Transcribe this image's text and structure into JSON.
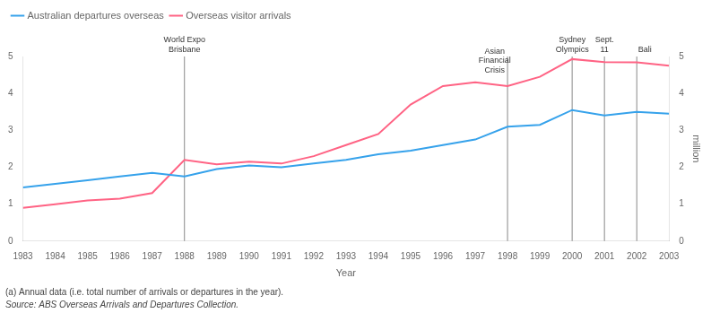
{
  "chart_data": {
    "type": "line",
    "x": [
      1983,
      1984,
      1985,
      1986,
      1987,
      1988,
      1989,
      1990,
      1991,
      1992,
      1993,
      1994,
      1995,
      1996,
      1997,
      1998,
      1999,
      2000,
      2001,
      2002,
      2003
    ],
    "series": [
      {
        "name": "Australian departures overseas",
        "values": [
          1.45,
          1.55,
          1.65,
          1.75,
          1.85,
          1.75,
          1.95,
          2.05,
          2.0,
          2.1,
          2.2,
          2.35,
          2.45,
          2.6,
          2.75,
          3.1,
          3.15,
          3.55,
          3.4,
          3.5,
          3.45
        ]
      },
      {
        "name": "Overseas visitor arrivals",
        "values": [
          0.9,
          1.0,
          1.1,
          1.15,
          1.3,
          2.2,
          2.08,
          2.15,
          2.1,
          2.3,
          2.6,
          2.9,
          3.7,
          4.2,
          4.3,
          4.2,
          4.45,
          4.93,
          4.85,
          4.84,
          4.75
        ]
      }
    ],
    "xlabel": "Year",
    "xlim": [
      1983,
      2003
    ],
    "xticks": [
      1983,
      1984,
      1985,
      1986,
      1987,
      1988,
      1989,
      1990,
      1991,
      1992,
      1993,
      1994,
      1995,
      1996,
      1997,
      1998,
      1999,
      2000,
      2001,
      2002,
      2003
    ],
    "ylim": [
      0,
      5
    ],
    "yticks": [
      0,
      1,
      2,
      3,
      4,
      5
    ],
    "y2lim": [
      0,
      5
    ],
    "y2ticks": [
      0,
      1,
      2,
      3,
      4,
      5
    ],
    "y2label": "million",
    "vlines": [
      1988,
      1998,
      2000,
      2001,
      2002
    ],
    "annotations": [
      {
        "x": 1988.0,
        "y": 5.08,
        "text": "World Expo\nBrisbane"
      },
      {
        "x": 1997.6,
        "y": 4.52,
        "text": "Asian\nFinancial\nCrisis"
      },
      {
        "x": 2000.0,
        "y": 5.08,
        "text": "Sydney\nOlympics"
      },
      {
        "x": 2001.0,
        "y": 5.08,
        "text": "Sept.\n11"
      },
      {
        "x": 2002.25,
        "y": 5.08,
        "text": "Bali"
      }
    ],
    "footnote": "(a) Annual data (i.e. total number of arrivals or departures in the year).",
    "source": "Source: ABS Overseas Arrivals and Departures Collection.",
    "legend": "upper left",
    "grid": false
  }
}
